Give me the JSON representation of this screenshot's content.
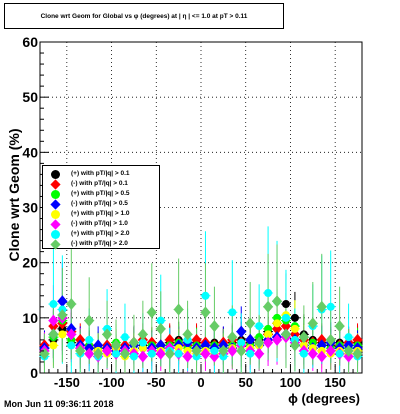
{
  "chart_data": {
    "type": "scatter",
    "title": "Clone wrt Geom for Global vs φ (degrees) at | η | <= 1.0 at pT > 0.11",
    "xlabel": "ϕ (degrees)",
    "ylabel": "Clone wrt Geom (%)",
    "xlim": [
      -180,
      180
    ],
    "ylim": [
      0,
      60
    ],
    "xticks": [
      -150,
      -100,
      -50,
      0,
      50,
      100,
      150
    ],
    "yticks": [
      0,
      10,
      20,
      30,
      40,
      50,
      60
    ],
    "grid": true,
    "legend_position": "center-left",
    "x": [
      -175,
      -165,
      -155,
      -145,
      -135,
      -125,
      -115,
      -105,
      -95,
      -85,
      -75,
      -65,
      -55,
      -45,
      -35,
      -25,
      -15,
      -5,
      5,
      15,
      25,
      35,
      45,
      55,
      65,
      75,
      85,
      95,
      105,
      115,
      125,
      135,
      145,
      155,
      165,
      175
    ],
    "series": [
      {
        "name": "(+) with pT/|q| > 0.1",
        "color": "#000000",
        "values": [
          4.5,
          6.0,
          8.0,
          5.5,
          5.0,
          4.5,
          4.0,
          4.5,
          5.0,
          4.5,
          5.5,
          5.0,
          4.5,
          5.0,
          5.5,
          6.0,
          5.0,
          5.5,
          5.0,
          5.5,
          5.0,
          5.5,
          6.0,
          5.5,
          6.0,
          7.5,
          9.0,
          12.5,
          10.0,
          7.0,
          6.0,
          5.5,
          5.0,
          5.5,
          5.0,
          5.5
        ]
      },
      {
        "name": "(-) with pT/|q| > 0.1",
        "color": "#ff0000",
        "values": [
          5.0,
          8.5,
          9.0,
          7.5,
          6.0,
          5.0,
          4.5,
          5.0,
          4.5,
          5.0,
          5.5,
          6.0,
          5.5,
          5.0,
          6.0,
          5.5,
          5.0,
          6.0,
          5.5,
          5.0,
          5.5,
          6.0,
          5.5,
          6.0,
          5.5,
          7.0,
          8.0,
          8.5,
          7.0,
          6.0,
          5.5,
          6.0,
          5.5,
          5.0,
          5.5,
          6.0
        ]
      },
      {
        "name": "(+) with pT/|q| > 0.5",
        "color": "#00ff00",
        "values": [
          4.0,
          6.5,
          9.5,
          6.0,
          4.5,
          5.0,
          4.5,
          4.0,
          5.5,
          4.0,
          5.0,
          4.5,
          5.0,
          4.5,
          5.0,
          5.5,
          4.5,
          5.0,
          4.5,
          5.0,
          4.5,
          5.0,
          5.5,
          5.0,
          6.5,
          8.0,
          10.0,
          9.5,
          8.5,
          6.5,
          5.5,
          5.0,
          4.5,
          5.0,
          4.5,
          5.0
        ]
      },
      {
        "name": "(-) with pT/|q| > 0.5",
        "color": "#0000ff",
        "values": [
          4.5,
          7.0,
          13.0,
          8.0,
          5.0,
          4.5,
          5.0,
          4.5,
          4.0,
          4.5,
          5.0,
          4.5,
          4.5,
          5.0,
          4.5,
          5.0,
          5.5,
          4.5,
          5.0,
          4.5,
          5.0,
          4.5,
          7.5,
          6.0,
          5.0,
          6.0,
          6.5,
          7.0,
          6.0,
          5.0,
          4.5,
          5.0,
          5.5,
          4.5,
          5.0,
          4.5
        ]
      },
      {
        "name": "(+) with pT/|q| > 1.0",
        "color": "#ffff00",
        "values": [
          3.5,
          5.0,
          7.0,
          5.0,
          4.0,
          3.5,
          4.0,
          3.5,
          4.5,
          3.0,
          4.0,
          4.5,
          3.5,
          4.0,
          3.5,
          4.5,
          4.0,
          3.5,
          4.0,
          3.5,
          4.0,
          4.5,
          4.0,
          4.5,
          5.0,
          7.0,
          9.0,
          10.5,
          8.0,
          5.0,
          4.5,
          4.0,
          3.5,
          4.0,
          3.5,
          4.0
        ]
      },
      {
        "name": "(-) with pT/|q| > 1.0",
        "color": "#ff00ff",
        "values": [
          4.0,
          9.5,
          10.0,
          7.0,
          4.5,
          3.5,
          3.0,
          4.0,
          3.5,
          4.0,
          3.5,
          3.0,
          4.0,
          3.5,
          4.5,
          3.5,
          3.0,
          4.0,
          3.5,
          3.0,
          3.5,
          4.0,
          5.0,
          4.0,
          3.5,
          5.5,
          6.0,
          6.5,
          5.5,
          4.0,
          3.5,
          3.0,
          4.0,
          3.5,
          3.0,
          3.5
        ]
      },
      {
        "name": "(+) with pT/|q| > 2.0",
        "color": "#00ffff",
        "values": [
          3.0,
          12.5,
          11.5,
          5.0,
          3.5,
          6.0,
          3.0,
          8.0,
          3.5,
          6.5,
          3.0,
          5.5,
          3.5,
          9.5,
          4.0,
          3.5,
          6.0,
          3.0,
          14.0,
          4.0,
          3.0,
          11.0,
          5.5,
          3.5,
          8.5,
          14.5,
          13.0,
          10.0,
          6.0,
          3.5,
          8.5,
          11.5,
          12.0,
          3.5,
          6.5,
          3.0
        ]
      },
      {
        "name": "(-) with pT/|q| > 2.0",
        "color": "#66cc66",
        "values": [
          3.5,
          7.0,
          10.5,
          12.5,
          4.0,
          9.5,
          3.5,
          7.0,
          5.0,
          3.5,
          5.5,
          7.0,
          11.0,
          8.0,
          3.5,
          11.5,
          7.0,
          4.0,
          11.0,
          8.5,
          4.0,
          6.5,
          4.0,
          9.0,
          5.5,
          12.0,
          13.0,
          7.0,
          5.0,
          6.5,
          9.0,
          12.0,
          6.0,
          8.5,
          4.0,
          3.5
        ]
      }
    ]
  },
  "header": {
    "title_label": "Clone wrt Geom for Global vs φ (degrees) at | η | <= 1.0 at pT > 0.11"
  },
  "footer": {
    "timestamp": "Mon Jun 11 09:36:11 2018"
  }
}
